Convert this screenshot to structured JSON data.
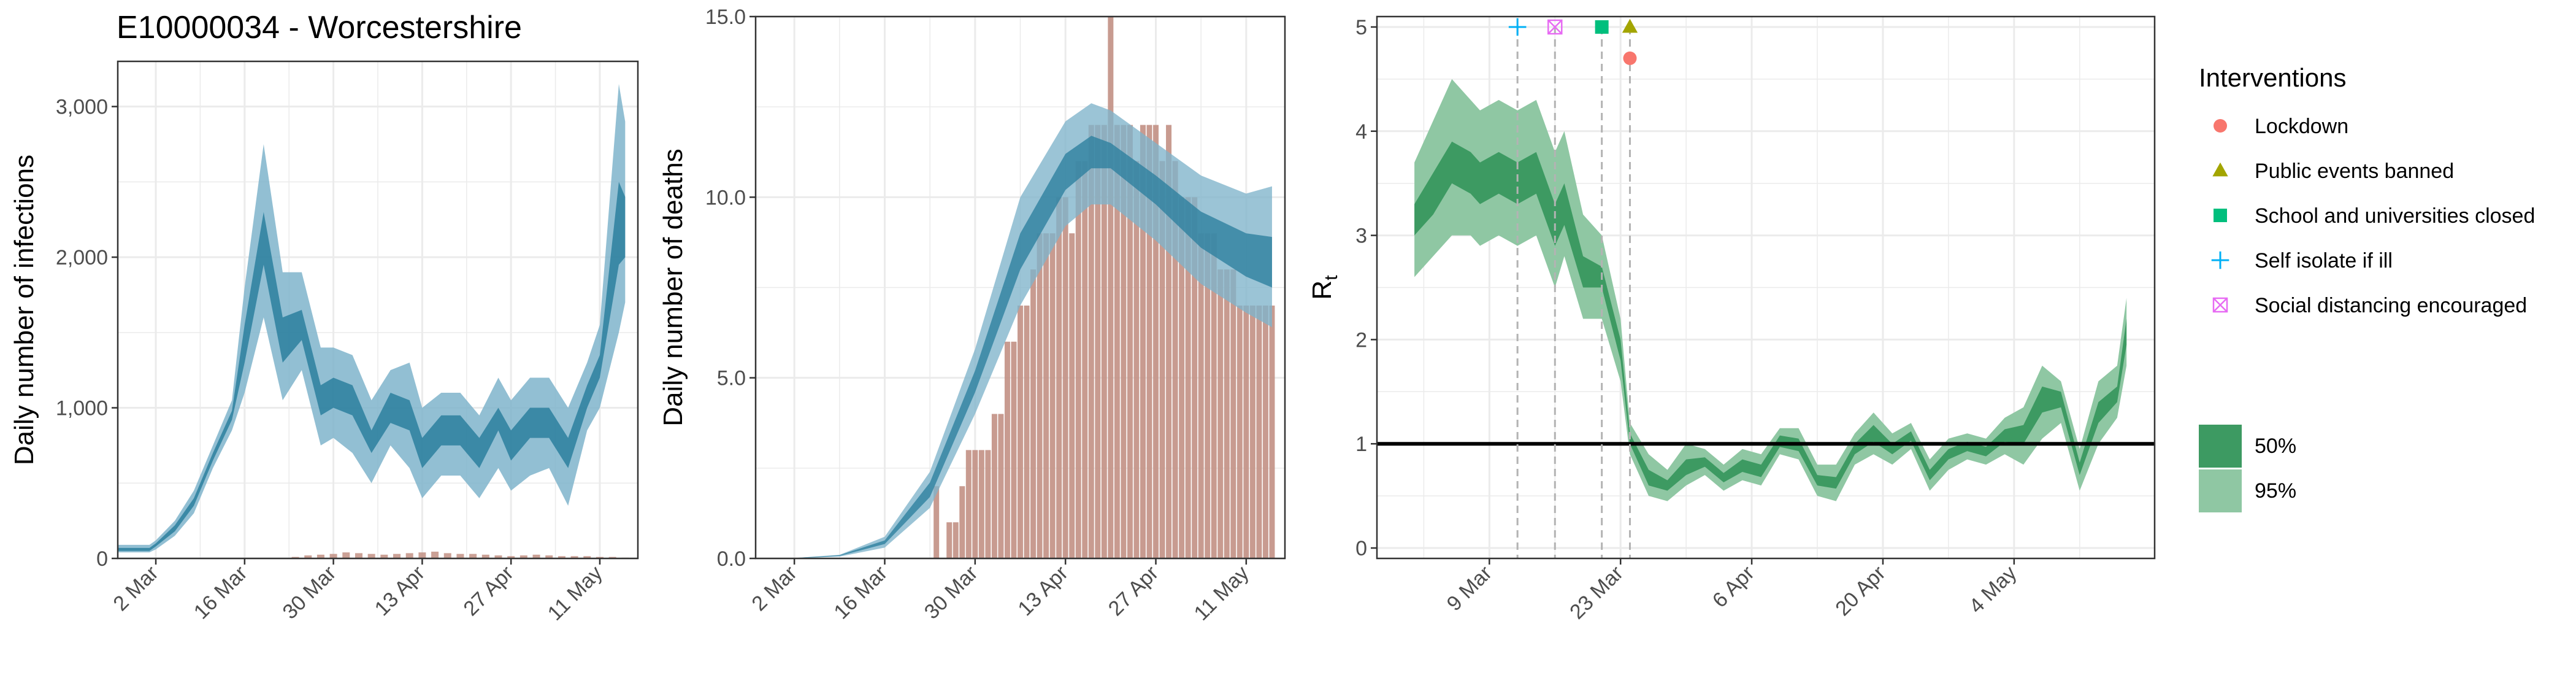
{
  "figure": {
    "title": "E10000034 - Worcestershire"
  },
  "colors": {
    "blue_inner": "#2c7f9e",
    "blue_outer": "#7fb4cb",
    "bar": "#c29084",
    "green_inner": "#3d9a62",
    "green_outer": "#8fc7a3",
    "grid": "#ebebeb",
    "lockdown": "#f8766d",
    "public_events": "#a3a500",
    "school": "#00bf7d",
    "self_isolate": "#00b0f6",
    "social_distancing": "#e76bf3"
  },
  "chart_data": [
    {
      "id": "infections",
      "type": "area",
      "title": "E10000034 - Worcestershire",
      "xlabel": "",
      "ylabel": "Daily number of infections",
      "x_start": "2020-02-25",
      "x_end": "2020-05-17",
      "x_ticks": [
        {
          "date": "2020-03-02",
          "label": "2 Mar"
        },
        {
          "date": "2020-03-16",
          "label": "16 Mar"
        },
        {
          "date": "2020-03-30",
          "label": "30 Mar"
        },
        {
          "date": "2020-04-13",
          "label": "13 Apr"
        },
        {
          "date": "2020-04-27",
          "label": "27 Apr"
        },
        {
          "date": "2020-05-11",
          "label": "11 May"
        }
      ],
      "ylim": [
        0,
        3300
      ],
      "y_ticks": [
        {
          "value": 0,
          "label": "0"
        },
        {
          "value": 1000,
          "label": "1,000"
        },
        {
          "value": 2000,
          "label": "2,000"
        },
        {
          "value": 3000,
          "label": "3,000"
        }
      ],
      "series": [
        {
          "band": "95%",
          "x": [
            "2020-02-25",
            "2020-03-01",
            "2020-03-02",
            "2020-03-05",
            "2020-03-08",
            "2020-03-11",
            "2020-03-14",
            "2020-03-16",
            "2020-03-19",
            "2020-03-22",
            "2020-03-25",
            "2020-03-28",
            "2020-03-30",
            "2020-04-02",
            "2020-04-05",
            "2020-04-08",
            "2020-04-11",
            "2020-04-13",
            "2020-04-16",
            "2020-04-19",
            "2020-04-22",
            "2020-04-25",
            "2020-04-27",
            "2020-04-30",
            "2020-05-03",
            "2020-05-06",
            "2020-05-09",
            "2020-05-11",
            "2020-05-14",
            "2020-05-15"
          ],
          "lower": [
            40,
            40,
            60,
            150,
            300,
            600,
            850,
            1100,
            1600,
            1050,
            1250,
            750,
            800,
            700,
            500,
            750,
            600,
            400,
            550,
            550,
            400,
            600,
            450,
            550,
            600,
            350,
            850,
            1000,
            1500,
            1700
          ],
          "upper": [
            90,
            90,
            120,
            250,
            450,
            750,
            1050,
            1800,
            2750,
            1900,
            1900,
            1400,
            1400,
            1350,
            1050,
            1250,
            1300,
            1000,
            1100,
            1100,
            950,
            1200,
            1050,
            1200,
            1200,
            1000,
            1300,
            1550,
            3150,
            2900
          ]
        },
        {
          "band": "50%",
          "x": [
            "2020-02-25",
            "2020-03-01",
            "2020-03-02",
            "2020-03-05",
            "2020-03-08",
            "2020-03-11",
            "2020-03-14",
            "2020-03-16",
            "2020-03-19",
            "2020-03-22",
            "2020-03-25",
            "2020-03-28",
            "2020-03-30",
            "2020-04-02",
            "2020-04-05",
            "2020-04-08",
            "2020-04-11",
            "2020-04-13",
            "2020-04-16",
            "2020-04-19",
            "2020-04-22",
            "2020-04-25",
            "2020-04-27",
            "2020-04-30",
            "2020-05-03",
            "2020-05-06",
            "2020-05-09",
            "2020-05-11",
            "2020-05-14",
            "2020-05-15"
          ],
          "lower": [
            50,
            50,
            80,
            180,
            350,
            650,
            920,
            1300,
            1950,
            1300,
            1450,
            950,
            1000,
            950,
            700,
            900,
            850,
            600,
            750,
            750,
            600,
            850,
            650,
            800,
            800,
            600,
            1000,
            1200,
            1950,
            2000
          ],
          "upper": [
            70,
            70,
            100,
            220,
            400,
            700,
            980,
            1550,
            2300,
            1600,
            1650,
            1150,
            1200,
            1150,
            850,
            1100,
            1050,
            800,
            950,
            950,
            800,
            1000,
            850,
            1000,
            1000,
            800,
            1150,
            1350,
            2500,
            2400
          ]
        }
      ],
      "bars": {
        "x": [
          "2020-03-24",
          "2020-03-26",
          "2020-03-28",
          "2020-03-30",
          "2020-04-01",
          "2020-04-03",
          "2020-04-05",
          "2020-04-07",
          "2020-04-09",
          "2020-04-11",
          "2020-04-13",
          "2020-04-15",
          "2020-04-17",
          "2020-04-19",
          "2020-04-21",
          "2020-04-23",
          "2020-04-25",
          "2020-04-27",
          "2020-04-29",
          "2020-05-01",
          "2020-05-03",
          "2020-05-05",
          "2020-05-07",
          "2020-05-09",
          "2020-05-11",
          "2020-05-13",
          "2020-05-15"
        ],
        "values": [
          10,
          20,
          25,
          30,
          40,
          35,
          30,
          25,
          30,
          35,
          40,
          45,
          35,
          30,
          30,
          25,
          20,
          15,
          20,
          25,
          20,
          15,
          15,
          15,
          10,
          10,
          5
        ]
      }
    },
    {
      "id": "deaths",
      "type": "area",
      "xlabel": "",
      "ylabel": "Daily number of deaths",
      "x_start": "2020-02-25",
      "x_end": "2020-05-17",
      "x_ticks": [
        {
          "date": "2020-03-02",
          "label": "2 Mar"
        },
        {
          "date": "2020-03-16",
          "label": "16 Mar"
        },
        {
          "date": "2020-03-30",
          "label": "30 Mar"
        },
        {
          "date": "2020-04-13",
          "label": "13 Apr"
        },
        {
          "date": "2020-04-27",
          "label": "27 Apr"
        },
        {
          "date": "2020-05-11",
          "label": "11 May"
        }
      ],
      "ylim": [
        0,
        15
      ],
      "y_ticks": [
        {
          "value": 0,
          "label": "0.0"
        },
        {
          "value": 5,
          "label": "5.0"
        },
        {
          "value": 10,
          "label": "10.0"
        },
        {
          "value": 15,
          "label": "15.0"
        }
      ],
      "bars": {
        "x": [
          "2020-03-24",
          "2020-03-26",
          "2020-03-27",
          "2020-03-28",
          "2020-03-29",
          "2020-03-30",
          "2020-03-31",
          "2020-04-01",
          "2020-04-02",
          "2020-04-03",
          "2020-04-04",
          "2020-04-05",
          "2020-04-06",
          "2020-04-07",
          "2020-04-08",
          "2020-04-09",
          "2020-04-10",
          "2020-04-11",
          "2020-04-12",
          "2020-04-13",
          "2020-04-14",
          "2020-04-15",
          "2020-04-16",
          "2020-04-17",
          "2020-04-18",
          "2020-04-19",
          "2020-04-20",
          "2020-04-21",
          "2020-04-22",
          "2020-04-23",
          "2020-04-24",
          "2020-04-25",
          "2020-04-26",
          "2020-04-27",
          "2020-04-28",
          "2020-04-29",
          "2020-04-30",
          "2020-05-01",
          "2020-05-02",
          "2020-05-03",
          "2020-05-04",
          "2020-05-05",
          "2020-05-06",
          "2020-05-07",
          "2020-05-08",
          "2020-05-09",
          "2020-05-10",
          "2020-05-11",
          "2020-05-12",
          "2020-05-13",
          "2020-05-14",
          "2020-05-15"
        ],
        "values": [
          2,
          1,
          1,
          2,
          3,
          3,
          3,
          3,
          4,
          4,
          6,
          6,
          7,
          7,
          8,
          9,
          9,
          9,
          10,
          10,
          9,
          11,
          11,
          12,
          12,
          12,
          15,
          12,
          12,
          12,
          11,
          12,
          12,
          12,
          11,
          12,
          11,
          10,
          10,
          10,
          9,
          9,
          9,
          8,
          8,
          8,
          7,
          7,
          7,
          7,
          7,
          7
        ]
      },
      "series": [
        {
          "band": "95%",
          "x": [
            "2020-02-25",
            "2020-03-02",
            "2020-03-09",
            "2020-03-16",
            "2020-03-23",
            "2020-03-30",
            "2020-04-06",
            "2020-04-13",
            "2020-04-17",
            "2020-04-20",
            "2020-04-27",
            "2020-05-04",
            "2020-05-11",
            "2020-05-15"
          ],
          "lower": [
            0,
            0,
            0.05,
            0.3,
            1.4,
            4.0,
            7.0,
            9.2,
            9.8,
            9.8,
            8.8,
            7.6,
            6.8,
            6.4
          ],
          "upper": [
            0,
            0.01,
            0.1,
            0.6,
            2.4,
            5.8,
            10.0,
            12.1,
            12.6,
            12.4,
            11.5,
            10.6,
            10.1,
            10.3
          ]
        },
        {
          "band": "50%",
          "x": [
            "2020-02-25",
            "2020-03-02",
            "2020-03-09",
            "2020-03-16",
            "2020-03-23",
            "2020-03-30",
            "2020-04-06",
            "2020-04-13",
            "2020-04-17",
            "2020-04-20",
            "2020-04-27",
            "2020-05-04",
            "2020-05-11",
            "2020-05-15"
          ],
          "lower": [
            0,
            0,
            0.07,
            0.4,
            1.7,
            4.6,
            8.0,
            10.2,
            10.8,
            10.8,
            9.8,
            8.6,
            7.8,
            7.5
          ],
          "upper": [
            0,
            0.01,
            0.09,
            0.5,
            2.1,
            5.2,
            9.0,
            11.2,
            11.7,
            11.5,
            10.6,
            9.6,
            9.0,
            8.9
          ]
        }
      ]
    },
    {
      "id": "rt",
      "type": "area",
      "xlabel": "",
      "ylabel": "R",
      "ylabel_sub": "t",
      "x_start": "2020-02-26",
      "x_end": "2020-05-19",
      "x_ticks": [
        {
          "date": "2020-03-09",
          "label": "9 Mar"
        },
        {
          "date": "2020-03-23",
          "label": "23 Mar"
        },
        {
          "date": "2020-04-06",
          "label": "6 Apr"
        },
        {
          "date": "2020-04-20",
          "label": "20 Apr"
        },
        {
          "date": "2020-05-04",
          "label": "4 May"
        }
      ],
      "ylim": [
        -0.1,
        5.1
      ],
      "y_ticks": [
        {
          "value": 0,
          "label": "0"
        },
        {
          "value": 1,
          "label": "1"
        },
        {
          "value": 2,
          "label": "2"
        },
        {
          "value": 3,
          "label": "3"
        },
        {
          "value": 4,
          "label": "4"
        },
        {
          "value": 5,
          "label": "5"
        }
      ],
      "reference_line": 1,
      "series": [
        {
          "band": "95%",
          "x": [
            "2020-03-01",
            "2020-03-03",
            "2020-03-05",
            "2020-03-07",
            "2020-03-08",
            "2020-03-10",
            "2020-03-12",
            "2020-03-14",
            "2020-03-16",
            "2020-03-17",
            "2020-03-19",
            "2020-03-21",
            "2020-03-23",
            "2020-03-24",
            "2020-03-26",
            "2020-03-28",
            "2020-03-30",
            "2020-04-01",
            "2020-04-03",
            "2020-04-05",
            "2020-04-07",
            "2020-04-09",
            "2020-04-11",
            "2020-04-13",
            "2020-04-15",
            "2020-04-17",
            "2020-04-19",
            "2020-04-21",
            "2020-04-23",
            "2020-04-25",
            "2020-04-27",
            "2020-04-29",
            "2020-05-01",
            "2020-05-03",
            "2020-05-05",
            "2020-05-07",
            "2020-05-09",
            "2020-05-11",
            "2020-05-13",
            "2020-05-15",
            "2020-05-16"
          ],
          "lower": [
            2.6,
            2.8,
            3.0,
            3.0,
            2.9,
            3.0,
            2.9,
            3.0,
            2.5,
            2.8,
            2.2,
            2.2,
            1.6,
            0.9,
            0.5,
            0.45,
            0.6,
            0.7,
            0.55,
            0.65,
            0.6,
            0.9,
            0.85,
            0.5,
            0.45,
            0.8,
            0.9,
            0.8,
            0.95,
            0.55,
            0.75,
            0.85,
            0.8,
            0.9,
            0.8,
            1.05,
            1.2,
            0.55,
            1.0,
            1.25,
            1.75
          ],
          "upper": [
            3.7,
            4.1,
            4.5,
            4.3,
            4.2,
            4.3,
            4.2,
            4.3,
            3.8,
            4.0,
            3.2,
            3.0,
            2.2,
            1.2,
            0.9,
            0.75,
            1.0,
            0.95,
            0.8,
            0.95,
            0.9,
            1.15,
            1.15,
            0.8,
            0.8,
            1.1,
            1.3,
            1.1,
            1.2,
            0.85,
            1.05,
            1.1,
            1.05,
            1.25,
            1.35,
            1.75,
            1.6,
            0.95,
            1.6,
            1.75,
            2.4
          ]
        },
        {
          "band": "50%",
          "x": [
            "2020-03-01",
            "2020-03-03",
            "2020-03-05",
            "2020-03-07",
            "2020-03-08",
            "2020-03-10",
            "2020-03-12",
            "2020-03-14",
            "2020-03-16",
            "2020-03-17",
            "2020-03-19",
            "2020-03-21",
            "2020-03-23",
            "2020-03-24",
            "2020-03-26",
            "2020-03-28",
            "2020-03-30",
            "2020-04-01",
            "2020-04-03",
            "2020-04-05",
            "2020-04-07",
            "2020-04-09",
            "2020-04-11",
            "2020-04-13",
            "2020-04-15",
            "2020-04-17",
            "2020-04-19",
            "2020-04-21",
            "2020-04-23",
            "2020-04-25",
            "2020-04-27",
            "2020-04-29",
            "2020-05-01",
            "2020-05-03",
            "2020-05-05",
            "2020-05-07",
            "2020-05-09",
            "2020-05-11",
            "2020-05-13",
            "2020-05-15",
            "2020-05-16"
          ],
          "lower": [
            3.0,
            3.2,
            3.5,
            3.4,
            3.3,
            3.4,
            3.3,
            3.4,
            2.9,
            3.1,
            2.5,
            2.5,
            1.8,
            1.0,
            0.6,
            0.55,
            0.7,
            0.78,
            0.63,
            0.73,
            0.68,
            0.97,
            0.93,
            0.6,
            0.57,
            0.9,
            1.02,
            0.9,
            1.03,
            0.65,
            0.85,
            0.93,
            0.88,
            1.02,
            1.0,
            1.3,
            1.35,
            0.7,
            1.2,
            1.4,
            1.95
          ],
          "upper": [
            3.3,
            3.6,
            3.9,
            3.8,
            3.7,
            3.8,
            3.7,
            3.8,
            3.3,
            3.5,
            2.8,
            2.7,
            2.0,
            1.1,
            0.75,
            0.65,
            0.85,
            0.87,
            0.72,
            0.85,
            0.8,
            1.08,
            1.05,
            0.7,
            0.68,
            1.0,
            1.18,
            1.0,
            1.12,
            0.75,
            0.95,
            1.02,
            0.97,
            1.14,
            1.18,
            1.55,
            1.5,
            0.82,
            1.4,
            1.55,
            2.2
          ]
        }
      ],
      "interventions": [
        {
          "name": "Self isolate if ill",
          "date": "2020-03-12",
          "marker": "plus",
          "value": 5.0
        },
        {
          "name": "Social distancing encouraged",
          "date": "2020-03-16",
          "marker": "boxcross",
          "value": 5.0
        },
        {
          "name": "School and universities closed",
          "date": "2020-03-21",
          "marker": "square",
          "value": 5.0
        },
        {
          "name": "Public events banned",
          "date": "2020-03-24",
          "marker": "triangle",
          "value": 5.0
        },
        {
          "name": "Lockdown",
          "date": "2020-03-24",
          "marker": "circle",
          "value": 4.7
        }
      ]
    }
  ],
  "legend": {
    "interventions_title": "Interventions",
    "interventions": [
      {
        "label": "Lockdown",
        "marker": "circle",
        "color": "#f8766d"
      },
      {
        "label": "Public events banned",
        "marker": "triangle",
        "color": "#a3a500"
      },
      {
        "label": "School and universities closed",
        "marker": "square",
        "color": "#00bf7d"
      },
      {
        "label": "Self isolate if ill",
        "marker": "plus",
        "color": "#00b0f6"
      },
      {
        "label": "Social distancing encouraged",
        "marker": "boxcross",
        "color": "#e76bf3"
      }
    ],
    "bands": [
      {
        "label": "50%",
        "color": "#3d9a62"
      },
      {
        "label": "95%",
        "color": "#8fc7a3"
      }
    ]
  }
}
